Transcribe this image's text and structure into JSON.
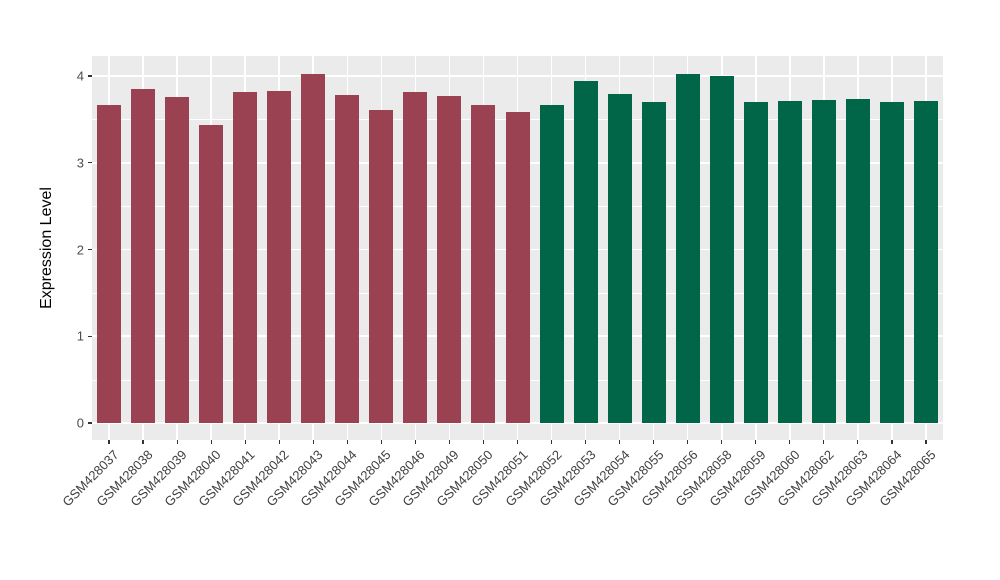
{
  "chart_data": {
    "type": "bar",
    "title": "",
    "xlabel": "",
    "ylabel": "Expression Level",
    "ylim": [
      0,
      4.23
    ],
    "yticks": [
      0,
      1,
      2,
      3,
      4
    ],
    "yticks_minor": [
      0.5,
      1.5,
      2.5,
      3.5
    ],
    "grid": true,
    "legend": "none",
    "panel_bg": "#ebebeb",
    "grid_color": "#ffffff",
    "axis_text_color": "#4d4d4d",
    "tick_color": "#333333",
    "series": [
      {
        "color": "#9a4252",
        "categories": [
          "GSM428037",
          "GSM428038",
          "GSM428039",
          "GSM428040",
          "GSM428041",
          "GSM428042",
          "GSM428043",
          "GSM428044",
          "GSM428045",
          "GSM428046",
          "GSM428049",
          "GSM428050",
          "GSM428051"
        ],
        "values": [
          3.66,
          3.85,
          3.76,
          3.43,
          3.82,
          3.83,
          4.02,
          3.78,
          3.61,
          3.82,
          3.77,
          3.66,
          3.59
        ]
      },
      {
        "color": "#006647",
        "categories": [
          "GSM428052",
          "GSM428053",
          "GSM428054",
          "GSM428055",
          "GSM428056",
          "GSM428058",
          "GSM428059",
          "GSM428060",
          "GSM428062",
          "GSM428063",
          "GSM428064",
          "GSM428065"
        ],
        "values": [
          3.66,
          3.94,
          3.79,
          3.7,
          4.02,
          4.0,
          3.7,
          3.71,
          3.72,
          3.73,
          3.7,
          3.71
        ]
      }
    ]
  }
}
